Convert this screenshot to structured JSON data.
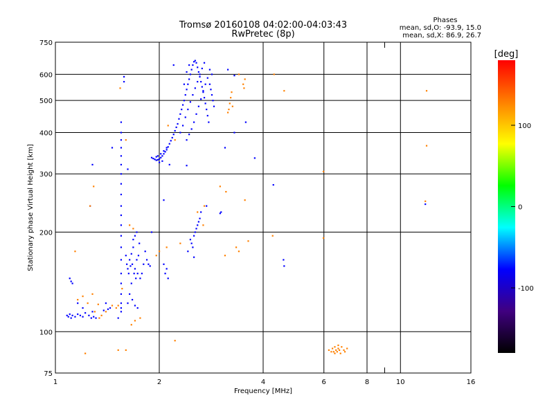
{
  "chart_data": {
    "type": "scatter",
    "title": "Tromsø 20160108 04:02:00-04:03:43",
    "subtitle": "RwPretec (8p)",
    "xlabel": "Frequency [MHz]",
    "ylabel": "Stationary phase Virtual Height [km]",
    "x_scale": "log",
    "y_scale": "log",
    "xlim": [
      1,
      16
    ],
    "ylim": [
      75,
      750
    ],
    "x_ticks": [
      1,
      2,
      4,
      6,
      8,
      10,
      16
    ],
    "x_tick_labels": [
      "1",
      "2",
      "4",
      "6",
      "8",
      "10",
      "16"
    ],
    "x_minor_ticks": [
      9
    ],
    "y_ticks": [
      75,
      100,
      200,
      300,
      400,
      500,
      600,
      750
    ],
    "y_tick_labels": [
      "75",
      "100",
      "200",
      "300",
      "400",
      "500",
      "600",
      "750"
    ],
    "grid": true,
    "phases_header": "Phases",
    "phases_line1": "mean, sd,O:  -93.9, 15.0",
    "phases_line2": "mean, sd,X:   86.9, 26.7",
    "colorbar": {
      "label": "[deg]",
      "range": [
        -180,
        180
      ],
      "ticks": [
        100,
        0,
        -100
      ],
      "tick_labels": [
        "100",
        "0",
        "-100"
      ],
      "colors": [
        "#ff0000",
        "#ff8000",
        "#ffff00",
        "#00ff00",
        "#00ffff",
        "#0000ff",
        "#400080",
        "#000000"
      ]
    },
    "series": [
      {
        "name": "O",
        "color": "#0000ff",
        "points": [
          [
            1.08,
            112
          ],
          [
            1.09,
            111
          ],
          [
            1.1,
            113
          ],
          [
            1.11,
            110
          ],
          [
            1.12,
            112
          ],
          [
            1.14,
            111
          ],
          [
            1.16,
            113
          ],
          [
            1.18,
            112
          ],
          [
            1.2,
            111
          ],
          [
            1.22,
            114
          ],
          [
            1.25,
            112
          ],
          [
            1.27,
            110
          ],
          [
            1.29,
            111
          ],
          [
            1.31,
            110
          ],
          [
            1.1,
            145
          ],
          [
            1.11,
            142
          ],
          [
            1.12,
            140
          ],
          [
            1.16,
            122
          ],
          [
            1.2,
            118
          ],
          [
            1.28,
            115
          ],
          [
            1.38,
            116
          ],
          [
            1.42,
            117
          ],
          [
            1.44,
            118
          ],
          [
            1.4,
            122
          ],
          [
            1.52,
            110
          ],
          [
            1.55,
            118
          ],
          [
            1.55,
            430
          ],
          [
            1.55,
            400
          ],
          [
            1.55,
            380
          ],
          [
            1.55,
            360
          ],
          [
            1.55,
            340
          ],
          [
            1.55,
            320
          ],
          [
            1.55,
            300
          ],
          [
            1.55,
            280
          ],
          [
            1.55,
            260
          ],
          [
            1.55,
            240
          ],
          [
            1.55,
            225
          ],
          [
            1.55,
            210
          ],
          [
            1.55,
            195
          ],
          [
            1.55,
            180
          ],
          [
            1.55,
            165
          ],
          [
            1.55,
            150
          ],
          [
            1.55,
            140
          ],
          [
            1.55,
            130
          ],
          [
            1.55,
            122
          ],
          [
            1.55,
            115
          ],
          [
            1.58,
            590
          ],
          [
            1.58,
            570
          ],
          [
            1.28,
            320
          ],
          [
            1.26,
            240
          ],
          [
            1.46,
            360
          ],
          [
            1.62,
            310
          ],
          [
            1.6,
            170
          ],
          [
            1.61,
            160
          ],
          [
            1.62,
            155
          ],
          [
            1.63,
            150
          ],
          [
            1.64,
            165
          ],
          [
            1.65,
            158
          ],
          [
            1.66,
            172
          ],
          [
            1.67,
            160
          ],
          [
            1.68,
            180
          ],
          [
            1.69,
            150
          ],
          [
            1.7,
            155
          ],
          [
            1.71,
            145
          ],
          [
            1.72,
            165
          ],
          [
            1.73,
            150
          ],
          [
            1.74,
            170
          ],
          [
            1.75,
            185
          ],
          [
            1.76,
            145
          ],
          [
            1.68,
            190
          ],
          [
            1.7,
            195
          ],
          [
            1.72,
            200
          ],
          [
            1.66,
            140
          ],
          [
            1.64,
            130
          ],
          [
            1.67,
            125
          ],
          [
            1.7,
            120
          ],
          [
            1.73,
            118
          ],
          [
            1.62,
            122
          ],
          [
            1.78,
            150
          ],
          [
            1.8,
            160
          ],
          [
            1.82,
            175
          ],
          [
            1.84,
            165
          ],
          [
            1.86,
            160
          ],
          [
            1.88,
            158
          ],
          [
            1.9,
            336
          ],
          [
            1.92,
            334
          ],
          [
            1.94,
            332
          ],
          [
            1.96,
            330
          ],
          [
            1.98,
            331
          ],
          [
            2.0,
            333
          ],
          [
            2.02,
            336
          ],
          [
            2.04,
            340
          ],
          [
            2.06,
            345
          ],
          [
            2.08,
            350
          ],
          [
            2.1,
            355
          ],
          [
            2.12,
            362
          ],
          [
            2.14,
            370
          ],
          [
            2.16,
            378
          ],
          [
            2.18,
            386
          ],
          [
            2.2,
            395
          ],
          [
            1.98,
            340
          ],
          [
            2.02,
            345
          ],
          [
            2.06,
            352
          ],
          [
            2.1,
            360
          ],
          [
            2.0,
            325
          ],
          [
            2.04,
            328
          ],
          [
            1.96,
            338
          ],
          [
            2.22,
            405
          ],
          [
            2.24,
            415
          ],
          [
            2.26,
            425
          ],
          [
            2.28,
            440
          ],
          [
            2.3,
            455
          ],
          [
            2.32,
            470
          ],
          [
            2.34,
            485
          ],
          [
            2.36,
            500
          ],
          [
            2.38,
            520
          ],
          [
            2.4,
            540
          ],
          [
            2.42,
            560
          ],
          [
            2.44,
            580
          ],
          [
            2.46,
            600
          ],
          [
            2.48,
            620
          ],
          [
            2.5,
            640
          ],
          [
            2.52,
            655
          ],
          [
            2.54,
            660
          ],
          [
            2.56,
            650
          ],
          [
            2.58,
            630
          ],
          [
            2.6,
            610
          ],
          [
            2.62,
            590
          ],
          [
            2.64,
            570
          ],
          [
            2.66,
            550
          ],
          [
            2.68,
            530
          ],
          [
            2.7,
            510
          ],
          [
            2.72,
            490
          ],
          [
            2.74,
            470
          ],
          [
            2.76,
            450
          ],
          [
            2.78,
            430
          ],
          [
            2.3,
            400
          ],
          [
            2.34,
            420
          ],
          [
            2.38,
            445
          ],
          [
            2.42,
            470
          ],
          [
            2.46,
            495
          ],
          [
            2.5,
            520
          ],
          [
            2.54,
            545
          ],
          [
            2.58,
            570
          ],
          [
            2.62,
            600
          ],
          [
            2.66,
            625
          ],
          [
            2.7,
            650
          ],
          [
            2.4,
            380
          ],
          [
            2.44,
            395
          ],
          [
            2.48,
            410
          ],
          [
            2.52,
            430
          ],
          [
            2.56,
            455
          ],
          [
            2.6,
            480
          ],
          [
            2.64,
            505
          ],
          [
            2.68,
            535
          ],
          [
            2.72,
            560
          ],
          [
            2.76,
            585
          ],
          [
            2.8,
            560
          ],
          [
            2.82,
            540
          ],
          [
            2.84,
            520
          ],
          [
            2.86,
            500
          ],
          [
            2.88,
            480
          ],
          [
            2.8,
            620
          ],
          [
            2.84,
            600
          ],
          [
            2.36,
            560
          ],
          [
            2.4,
            610
          ],
          [
            2.44,
            640
          ],
          [
            2.46,
            190
          ],
          [
            2.48,
            185
          ],
          [
            2.5,
            180
          ],
          [
            2.52,
            195
          ],
          [
            2.54,
            200
          ],
          [
            2.56,
            205
          ],
          [
            2.58,
            210
          ],
          [
            2.6,
            215
          ],
          [
            2.62,
            220
          ],
          [
            2.64,
            230
          ],
          [
            2.42,
            175
          ],
          [
            2.52,
            168
          ],
          [
            2.2,
            640
          ],
          [
            2.14,
            320
          ],
          [
            1.9,
            200
          ],
          [
            2.06,
            160
          ],
          [
            2.08,
            150
          ],
          [
            2.1,
            155
          ],
          [
            2.12,
            145
          ],
          [
            2.06,
            250
          ],
          [
            2.4,
            318
          ],
          [
            2.74,
            240
          ],
          [
            3.16,
            620
          ],
          [
            3.3,
            595
          ],
          [
            3.1,
            360
          ],
          [
            3.0,
            228
          ],
          [
            4.28,
            278
          ],
          [
            4.58,
            165
          ],
          [
            4.6,
            158
          ],
          [
            3.78,
            335
          ],
          [
            3.56,
            430
          ],
          [
            3.02,
            230
          ],
          [
            11.8,
            243
          ],
          [
            3.3,
            400
          ]
        ]
      },
      {
        "name": "X",
        "color": "#ff8000",
        "points": [
          [
            6.2,
            88
          ],
          [
            6.3,
            87
          ],
          [
            6.35,
            89
          ],
          [
            6.4,
            87
          ],
          [
            6.45,
            86
          ],
          [
            6.5,
            88
          ],
          [
            6.55,
            87
          ],
          [
            6.6,
            89
          ],
          [
            6.65,
            88
          ],
          [
            6.7,
            86
          ],
          [
            6.75,
            90
          ],
          [
            6.85,
            88
          ],
          [
            6.9,
            87
          ],
          [
            7.0,
            89
          ],
          [
            6.45,
            90
          ],
          [
            6.6,
            91
          ],
          [
            3.18,
            470
          ],
          [
            3.2,
            490
          ],
          [
            3.22,
            510
          ],
          [
            3.24,
            530
          ],
          [
            3.26,
            480
          ],
          [
            3.16,
            460
          ],
          [
            3.5,
            560
          ],
          [
            3.52,
            545
          ],
          [
            3.54,
            580
          ],
          [
            3.4,
            600
          ],
          [
            4.3,
            600
          ],
          [
            4.6,
            535
          ],
          [
            3.62,
            188
          ],
          [
            3.54,
            250
          ],
          [
            3.0,
            275
          ],
          [
            2.68,
            210
          ],
          [
            2.58,
            230
          ],
          [
            5.98,
            305
          ],
          [
            5.98,
            192
          ],
          [
            11.9,
            535
          ],
          [
            11.9,
            365
          ],
          [
            11.8,
            248
          ],
          [
            1.14,
            175
          ],
          [
            1.26,
            240
          ],
          [
            1.29,
            275
          ],
          [
            1.54,
            545
          ],
          [
            1.6,
            380
          ],
          [
            1.64,
            210
          ],
          [
            1.68,
            205
          ],
          [
            1.46,
            120
          ],
          [
            1.5,
            118
          ],
          [
            1.4,
            115
          ],
          [
            1.36,
            112
          ],
          [
            1.34,
            110
          ],
          [
            1.3,
            115
          ],
          [
            1.33,
            121
          ],
          [
            1.66,
            105
          ],
          [
            1.7,
            108
          ],
          [
            1.96,
            170
          ],
          [
            2.0,
            175
          ],
          [
            2.1,
            180
          ],
          [
            2.3,
            185
          ],
          [
            2.12,
            420
          ],
          [
            2.22,
            380
          ],
          [
            3.34,
            180
          ],
          [
            3.12,
            265
          ],
          [
            4.26,
            195
          ],
          [
            2.22,
            94
          ],
          [
            1.6,
            88
          ],
          [
            1.52,
            88
          ],
          [
            1.22,
            86
          ],
          [
            1.16,
            125
          ],
          [
            1.2,
            128
          ],
          [
            1.24,
            122
          ],
          [
            1.28,
            130
          ],
          [
            1.52,
            120
          ],
          [
            1.56,
            135
          ],
          [
            1.76,
            110
          ],
          [
            3.1,
            170
          ],
          [
            3.4,
            175
          ],
          [
            2.7,
            240
          ]
        ]
      }
    ]
  }
}
